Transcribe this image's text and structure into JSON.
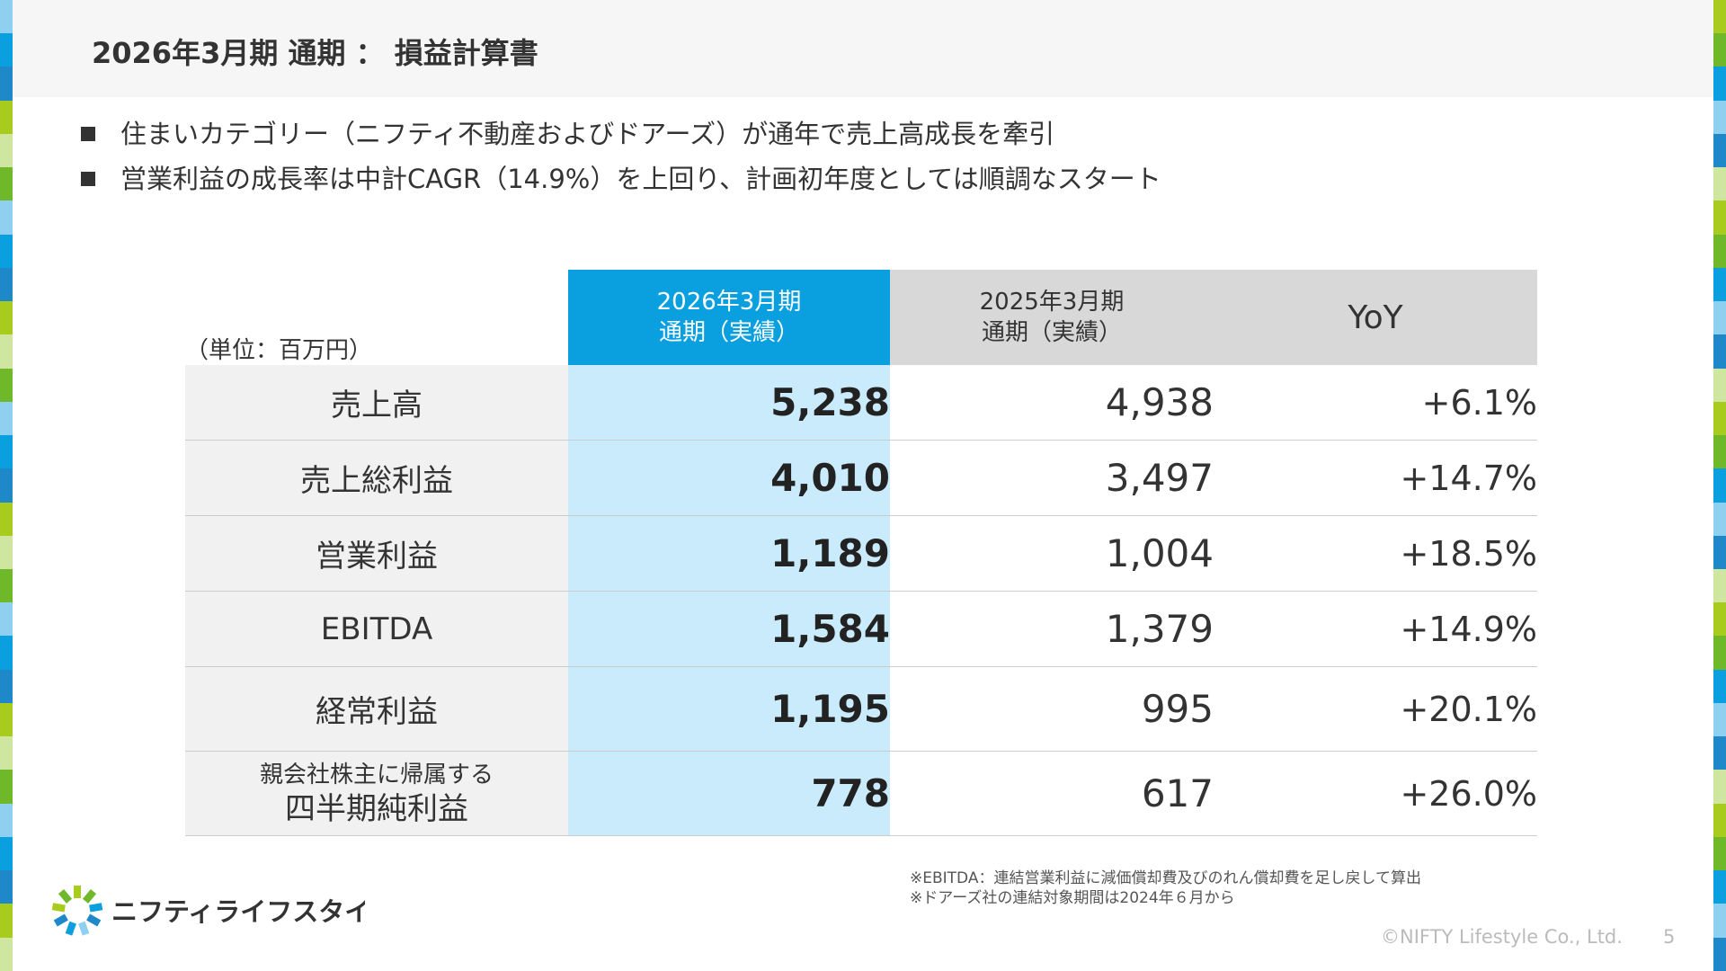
{
  "title": "2026年3月期 通期 ： 損益計算書",
  "bullets": [
    "住まいカテゴリー（ニフティ不動産およびドアーズ）が通年で売上高成長を牽引",
    "営業利益の成長率は中計CAGR（14.9%）を上回り、計画初年度としては順調なスタート"
  ],
  "table": {
    "unit_label": "（単位：百万円）",
    "headers": {
      "current_line1": "2026年3月期",
      "current_line2": "通期（実績）",
      "previous_line1": "2025年3月期",
      "previous_line2": "通期（実績）",
      "yoy": "YoY"
    },
    "rows": [
      {
        "label": "売上高",
        "current": "5,238",
        "previous": "4,938",
        "yoy": "+6.1%"
      },
      {
        "label": "売上総利益",
        "current": "4,010",
        "previous": "3,497",
        "yoy": "+14.7%"
      },
      {
        "label": "営業利益",
        "current": "1,189",
        "previous": "1,004",
        "yoy": "+18.5%"
      },
      {
        "label": "EBITDA",
        "current": "1,584",
        "previous": "1,379",
        "yoy": "+14.9%"
      },
      {
        "label": "経常利益",
        "current": "1,195",
        "previous": "995",
        "yoy": "+20.1%"
      },
      {
        "label_line1": "親会社株主に帰属する",
        "label_line2": "四半期純利益",
        "current": "778",
        "previous": "617",
        "yoy": "+26.0%"
      }
    ]
  },
  "notes": [
    "※EBITDA：連結営業利益に減価償却費及びのれん償却費を足し戻して算出",
    "※ドアーズ社の連結対象期間は2024年６月から"
  ],
  "logo_text": "ニフティライフスタイル",
  "copyright": "©NIFTY Lifestyle Co., Ltd.",
  "page_number": "5",
  "colors": {
    "accent_blue": "#0aa0e0",
    "light_blue_column": "#c9ebfb",
    "header_gray": "#d8d8d8",
    "label_gray": "#f1f1f1",
    "stripe": [
      "#0aa0e0",
      "#1e88c8",
      "#8fd0f0",
      "#a8cc1e",
      "#6fb82a",
      "#cfe6a0"
    ]
  },
  "icons": {
    "logo_mark": "burst-logo-icon",
    "bullet": "square-bullet-icon"
  }
}
